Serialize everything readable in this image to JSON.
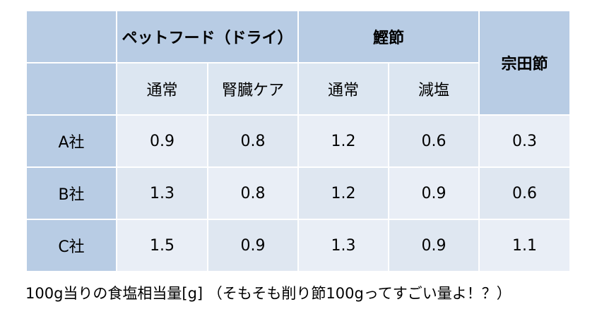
{
  "table": {
    "group_headers": {
      "pet_food": "ペットフード（ドライ）",
      "katsuobushi": "鰹節",
      "soudabushi": "宗田節"
    },
    "sub_headers": [
      "通常",
      "腎臓ケア",
      "通常",
      "減塩"
    ],
    "rows": [
      {
        "label": "A社",
        "values": [
          "0.9",
          "0.8",
          "1.2",
          "0.6",
          "0.3"
        ]
      },
      {
        "label": "B社",
        "values": [
          "1.3",
          "0.8",
          "1.2",
          "0.9",
          "0.6"
        ]
      },
      {
        "label": "C社",
        "values": [
          "1.5",
          "0.9",
          "1.3",
          "0.9",
          "1.1"
        ]
      }
    ]
  },
  "caption": "100g当りの食塩相当量[g] （そもそも削り節100gってすごい量よ！？）"
}
